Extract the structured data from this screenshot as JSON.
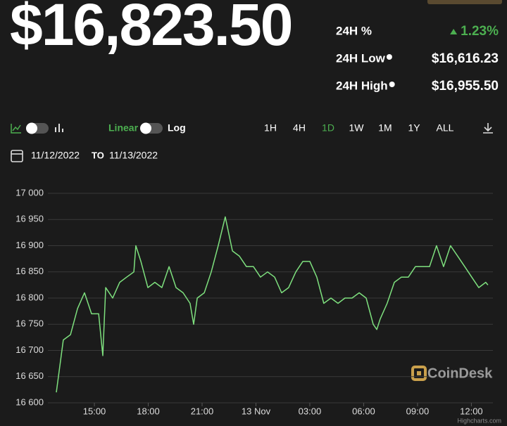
{
  "header": {
    "price": "$16,823.50"
  },
  "stats": [
    {
      "label": "24H %",
      "value": "1.23%",
      "color": "#4caf50"
    },
    {
      "label": "24H Low",
      "value": "$16,616.23"
    },
    {
      "label": "24H High",
      "value": "$16,955.50"
    }
  ],
  "toolbar": {
    "scales": [
      "Linear",
      "Log"
    ],
    "active_scale": "Linear",
    "ranges": [
      "1H",
      "4H",
      "1D",
      "1W",
      "1M",
      "1Y",
      "ALL"
    ],
    "active_range": "1D"
  },
  "dates": {
    "from": "11/12/2022",
    "separator": "TO",
    "to": "11/13/2022"
  },
  "watermark": "CoinDesk",
  "credits": "Highcharts.com",
  "chart_data": {
    "type": "line",
    "color": "#7ee07e",
    "grid": true,
    "x": [
      12.88,
      13.27,
      13.67,
      14.06,
      14.45,
      14.84,
      15.24,
      15.47,
      15.63,
      16.02,
      16.41,
      16.8,
      17.2,
      17.31,
      17.59,
      17.98,
      18.37,
      18.76,
      19.16,
      19.55,
      19.94,
      20.33,
      20.53,
      20.73,
      21.12,
      21.51,
      21.9,
      22.29,
      22.69,
      23.08,
      23.47,
      23.86,
      24.25,
      24.65,
      25.04,
      25.43,
      25.82,
      26.22,
      26.61,
      27.0,
      27.39,
      27.78,
      28.18,
      28.57,
      28.96,
      29.35,
      29.75,
      30.14,
      30.53,
      30.73,
      30.92,
      31.31,
      31.71,
      32.1,
      32.49,
      32.88,
      33.27,
      33.67,
      34.06,
      34.45,
      34.84,
      35.24,
      35.63,
      36.02,
      36.41,
      36.8,
      36.92
    ],
    "values": [
      16620,
      16720,
      16730,
      16780,
      16810,
      16770,
      16770,
      16690,
      16820,
      16800,
      16830,
      16840,
      16850,
      16900,
      16870,
      16820,
      16830,
      16820,
      16860,
      16820,
      16810,
      16790,
      16750,
      16800,
      16810,
      16850,
      16900,
      16955,
      16890,
      16880,
      16860,
      16860,
      16840,
      16850,
      16840,
      16810,
      16820,
      16850,
      16870,
      16870,
      16840,
      16790,
      16800,
      16790,
      16800,
      16800,
      16810,
      16800,
      16750,
      16740,
      16760,
      16790,
      16830,
      16840,
      16840,
      16860,
      16860,
      16860,
      16900,
      16860,
      16900,
      16880,
      16860,
      16840,
      16820,
      16830,
      16825
    ],
    "xlim": [
      12.41,
      37.2
    ],
    "ylim": [
      16600,
      17000
    ],
    "xticks": [
      {
        "value": 15,
        "label": "15:00"
      },
      {
        "value": 18,
        "label": "18:00"
      },
      {
        "value": 21,
        "label": "21:00"
      },
      {
        "value": 24,
        "label": "13 Nov"
      },
      {
        "value": 27,
        "label": "03:00"
      },
      {
        "value": 30,
        "label": "06:00"
      },
      {
        "value": 33,
        "label": "09:00"
      },
      {
        "value": 36,
        "label": "12:00"
      }
    ],
    "yticks": [
      {
        "value": 16600,
        "label": "16 600"
      },
      {
        "value": 16650,
        "label": "16 650"
      },
      {
        "value": 16700,
        "label": "16 700"
      },
      {
        "value": 16750,
        "label": "16 750"
      },
      {
        "value": 16800,
        "label": "16 800"
      },
      {
        "value": 16850,
        "label": "16 850"
      },
      {
        "value": 16900,
        "label": "16 900"
      },
      {
        "value": 16950,
        "label": "16 950"
      },
      {
        "value": 17000,
        "label": "17 000"
      }
    ]
  }
}
